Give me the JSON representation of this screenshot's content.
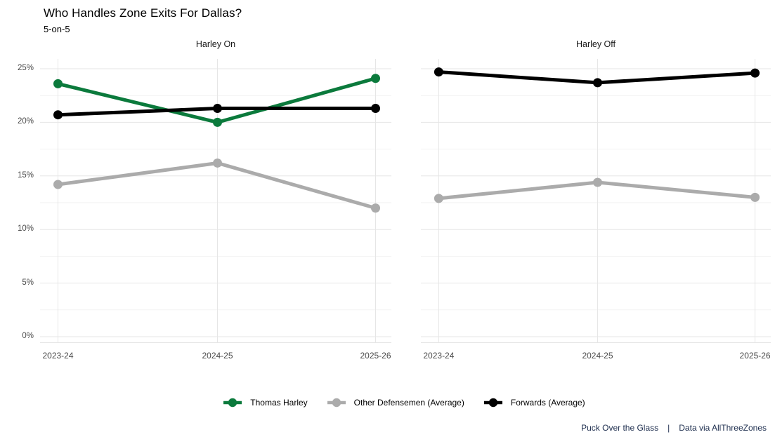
{
  "header": {
    "title": "Who Handles Zone Exits For Dallas?",
    "subtitle": "5-on-5"
  },
  "colors": {
    "green": "#0b7a3c",
    "gray": "#ababab",
    "black": "#000000",
    "grid_major": "#e6e6e6",
    "grid_minor": "#f2f2f2",
    "axis_text": "#4a4a4a",
    "footer_text": "#203050"
  },
  "legend": {
    "items": [
      {
        "label": "Thomas Harley",
        "color": "#0b7a3c"
      },
      {
        "label": "Other Defensemen (Average)",
        "color": "#ababab"
      },
      {
        "label": "Forwards (Average)",
        "color": "#000000"
      }
    ]
  },
  "footer": {
    "left": "Puck Over the Glass",
    "separator": "|",
    "right": "Data via AllThreeZones"
  },
  "chart_data": {
    "type": "line",
    "title": "Who Handles Zone Exits For Dallas?",
    "subtitle": "5-on-5",
    "categories": [
      "2023-24",
      "2024-25",
      "2025-26"
    ],
    "y_axis": {
      "min": 0,
      "max": 25,
      "tick_step": 5,
      "tick_labels": [
        "0%",
        "5%",
        "10%",
        "15%",
        "20%",
        "25%"
      ]
    },
    "grid": true,
    "legend_position": "bottom",
    "facets": [
      {
        "title": "Harley On",
        "series": [
          {
            "name": "Other Defensemen (Average)",
            "color": "#ababab",
            "values": [
              14.2,
              16.2,
              12.0
            ]
          },
          {
            "name": "Thomas Harley",
            "color": "#0b7a3c",
            "values": [
              23.6,
              20.0,
              24.1
            ]
          },
          {
            "name": "Forwards (Average)",
            "color": "#000000",
            "values": [
              20.7,
              21.3,
              21.3
            ]
          }
        ]
      },
      {
        "title": "Harley Off",
        "series": [
          {
            "name": "Other Defensemen (Average)",
            "color": "#ababab",
            "values": [
              12.9,
              14.4,
              13.0
            ]
          },
          {
            "name": "Forwards (Average)",
            "color": "#000000",
            "values": [
              24.7,
              23.7,
              24.6
            ]
          }
        ]
      }
    ]
  }
}
